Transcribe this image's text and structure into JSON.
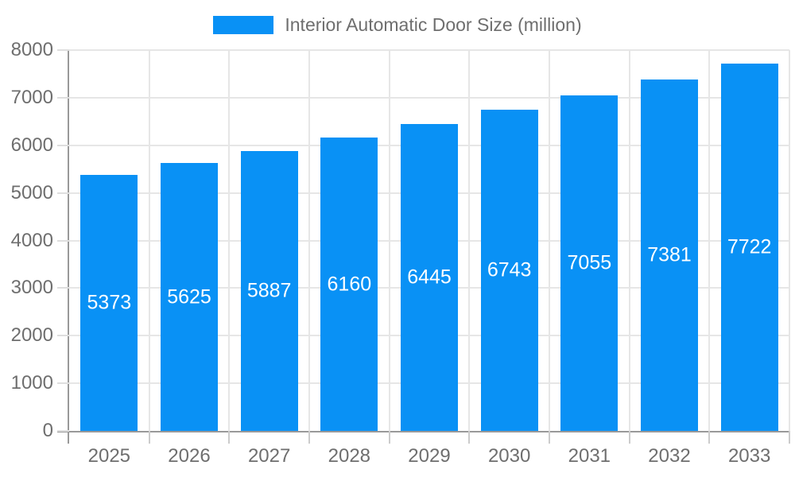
{
  "chart_data": {
    "type": "bar",
    "legend": {
      "label": "Interior Automatic Door Size (million)",
      "position": "top-center",
      "swatch_color": "#0991f5"
    },
    "categories": [
      "2025",
      "2026",
      "2027",
      "2028",
      "2029",
      "2030",
      "2031",
      "2032",
      "2033"
    ],
    "series": [
      {
        "name": "Interior Automatic Door Size (million)",
        "color": "#0991f5",
        "values": [
          5373,
          5625,
          5887,
          6160,
          6445,
          6743,
          7055,
          7381,
          7722
        ]
      }
    ],
    "value_labels": {
      "show": true,
      "color": "#ffffff",
      "placement": "inside-center"
    },
    "y_axis": {
      "min": 0,
      "max": 8000,
      "tick_step": 1000,
      "ticks": [
        0,
        1000,
        2000,
        3000,
        4000,
        5000,
        6000,
        7000,
        8000
      ],
      "label_color": "#6e6e6e"
    },
    "x_axis": {
      "label_color": "#6e6e6e"
    },
    "grid": {
      "horizontal": true,
      "vertical": true,
      "color": "#e6e6e6"
    },
    "axis_color": "#999999",
    "background": "#ffffff"
  }
}
